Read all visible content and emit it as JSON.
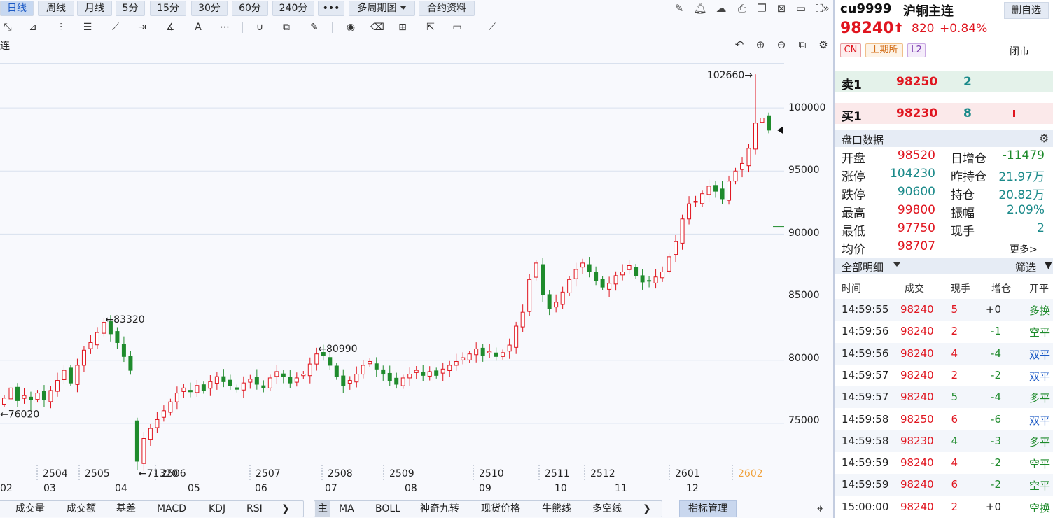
{
  "toolbar": {
    "periods": [
      {
        "label": "日线",
        "active": true
      },
      {
        "label": "周线"
      },
      {
        "label": "月线"
      },
      {
        "label": "5分"
      },
      {
        "label": "15分"
      },
      {
        "label": "30分"
      },
      {
        "label": "60分"
      },
      {
        "label": "240分"
      },
      {
        "label": "•••"
      },
      {
        "label": "多周期图"
      },
      {
        "label": "合约资料"
      }
    ]
  },
  "chart": {
    "label": "连",
    "y_ticks": [
      "100000",
      "95000",
      "90000",
      "85000",
      "80000",
      "75000"
    ],
    "contract_ticks": [
      "2504",
      "2505",
      "2506",
      "2507",
      "2508",
      "2509",
      "2510",
      "2511",
      "2512",
      "2601",
      "2602"
    ],
    "month_ticks": [
      "02",
      "03",
      "04",
      "05",
      "06",
      "07",
      "08",
      "09",
      "10",
      "11",
      "12"
    ],
    "annotations": {
      "high_all": "102660→",
      "peak1": "←83320",
      "peak2": "←80990",
      "low1": "←76020",
      "low2": "←71320"
    }
  },
  "chart_data": {
    "type": "candlestick",
    "ylim": [
      70500,
      103500
    ],
    "closes": [
      77000,
      77800,
      76800,
      77200,
      76900,
      77400,
      76900,
      77600,
      78400,
      79200,
      78200,
      79600,
      80800,
      81400,
      82200,
      83000,
      82100,
      81400,
      80300,
      79200,
      72000,
      73800,
      74600,
      75300,
      76000,
      76700,
      77400,
      77800,
      77500,
      78000,
      77600,
      78300,
      78700,
      78300,
      78000,
      77700,
      78200,
      78500,
      78100,
      77800,
      78600,
      79100,
      78700,
      78200,
      78600,
      78900,
      79700,
      80500,
      80400,
      79600,
      78700,
      78000,
      78400,
      78900,
      79600,
      79900,
      79300,
      78900,
      78400,
      78100,
      78600,
      78900,
      79200,
      78800,
      79100,
      78800,
      79300,
      79600,
      79900,
      80200,
      80500,
      80900,
      80400,
      80700,
      80300,
      80600,
      81200,
      82700,
      83800,
      86400,
      87700,
      85200,
      84100,
      84600,
      85400,
      86400,
      87200,
      87700,
      87000,
      86300,
      85800,
      86100,
      86700,
      87000,
      87500,
      86700,
      86200,
      86300,
      86600,
      87000,
      88200,
      89400,
      91200,
      92400,
      92600,
      93200,
      93800,
      93400,
      92800,
      94200,
      95000,
      95600,
      96800,
      98800,
      99200,
      98240
    ],
    "annotation_values": {
      "high_all": 102660,
      "peak1": 83320,
      "peak2": 80990,
      "low1": 76020,
      "low2": 71320
    }
  },
  "bottom": {
    "indicator_tabs": [
      "成交量",
      "成交额",
      "基差",
      "MACD",
      "KDJ",
      "RSI"
    ],
    "main_tag": "主",
    "overlay_tabs": [
      "MA",
      "BOLL",
      "神奇九转",
      "现货价格",
      "牛熊线",
      "多空线"
    ],
    "mgmt": "指标管理"
  },
  "panel": {
    "code": "cu9999",
    "name": "沪铜主连",
    "del_label": "删自选",
    "price": "98240",
    "change": "820",
    "pct": "+0.84%",
    "badges": [
      "CN",
      "上期所",
      "L2"
    ],
    "status": "闭市",
    "ask": {
      "label": "卖1",
      "price": "98250",
      "vol": "2"
    },
    "bid": {
      "label": "买1",
      "price": "98230",
      "vol": "8"
    },
    "pankou_title": "盘口数据",
    "stats": [
      {
        "label": "开盘",
        "value": "98520",
        "label2": "日增仓",
        "value2": "-11479"
      },
      {
        "label": "涨停",
        "value": "104230",
        "label2": "昨持仓",
        "value2": "21.97万"
      },
      {
        "label": "跌停",
        "value": "90600",
        "label2": "持仓",
        "value2": "20.82万"
      },
      {
        "label": "最高",
        "value": "99800",
        "label2": "振幅",
        "value2": "2.09%"
      },
      {
        "label": "最低",
        "value": "97750",
        "label2": "现手",
        "value2": "2"
      },
      {
        "label": "均价",
        "value": "98707",
        "label2": "",
        "value2": ""
      }
    ],
    "more": "更多>",
    "detail_title": "全部明细",
    "filter": "筛选",
    "table_headers": [
      "时间",
      "成交",
      "现手",
      "增仓",
      "开平"
    ],
    "trades": [
      {
        "time": "14:59:55",
        "price": "98240",
        "vol": "5",
        "oi": "+0",
        "type": "多换"
      },
      {
        "time": "14:59:56",
        "price": "98240",
        "vol": "2",
        "oi": "-1",
        "type": "空平"
      },
      {
        "time": "14:59:56",
        "price": "98240",
        "vol": "4",
        "oi": "-4",
        "type": "双平"
      },
      {
        "time": "14:59:57",
        "price": "98240",
        "vol": "2",
        "oi": "-2",
        "type": "双平"
      },
      {
        "time": "14:59:57",
        "price": "98240",
        "vol": "5",
        "oi": "-4",
        "type": "多平"
      },
      {
        "time": "14:59:58",
        "price": "98250",
        "vol": "6",
        "oi": "-6",
        "type": "双平"
      },
      {
        "time": "14:59:58",
        "price": "98230",
        "vol": "4",
        "oi": "-3",
        "type": "多平"
      },
      {
        "time": "14:59:59",
        "price": "98240",
        "vol": "4",
        "oi": "-2",
        "type": "空平"
      },
      {
        "time": "14:59:59",
        "price": "98240",
        "vol": "6",
        "oi": "-2",
        "type": "空平"
      },
      {
        "time": "15:00:00",
        "price": "98240",
        "vol": "2",
        "oi": "+0",
        "type": "空换"
      }
    ],
    "colors": {
      "up": "#e0151f",
      "down": "#1f8b2c",
      "teal": "#1b8a8a",
      "blue": "#1e5bc6"
    }
  }
}
